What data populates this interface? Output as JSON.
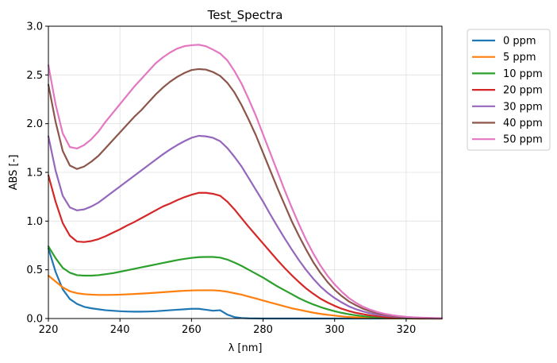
{
  "chart_data": {
    "type": "line",
    "title": "Test_Spectra",
    "xlabel": "λ [nm]",
    "ylabel": "ABS [-]",
    "xlim": [
      220,
      330
    ],
    "ylim": [
      0,
      3.0
    ],
    "xticks": [
      220,
      240,
      260,
      280,
      300,
      320
    ],
    "yticks": [
      0.0,
      0.5,
      1.0,
      1.5,
      2.0,
      2.5,
      3.0
    ],
    "xtick_labels": [
      "220",
      "240",
      "260",
      "280",
      "300",
      "320"
    ],
    "ytick_labels": [
      "0.0",
      "0.5",
      "1.0",
      "1.5",
      "2.0",
      "2.5",
      "3.0"
    ],
    "grid": true,
    "legend_position": "outside-top-right",
    "x": [
      220,
      222,
      224,
      226,
      228,
      230,
      232,
      234,
      236,
      238,
      240,
      242,
      244,
      246,
      248,
      250,
      252,
      254,
      256,
      258,
      260,
      262,
      264,
      266,
      268,
      270,
      272,
      274,
      276,
      278,
      280,
      282,
      284,
      286,
      288,
      290,
      292,
      294,
      296,
      298,
      300,
      302,
      304,
      306,
      308,
      310,
      312,
      314,
      316,
      318,
      320,
      322,
      324,
      326,
      328,
      330
    ],
    "series": [
      {
        "name": "0 ppm",
        "color": "#1f77b4",
        "values": [
          0.72,
          0.48,
          0.3,
          0.2,
          0.15,
          0.12,
          0.105,
          0.095,
          0.085,
          0.08,
          0.075,
          0.072,
          0.07,
          0.07,
          0.072,
          0.075,
          0.08,
          0.085,
          0.09,
          0.095,
          0.1,
          0.1,
          0.09,
          0.08,
          0.085,
          0.04,
          0.015,
          0.005,
          0.002,
          0.001,
          0,
          0,
          0,
          0,
          0,
          0,
          0,
          0,
          0,
          0,
          0,
          0,
          0,
          0,
          0,
          0,
          0,
          0,
          0,
          0,
          0,
          0,
          0,
          0,
          0,
          0
        ]
      },
      {
        "name": "5 ppm",
        "color": "#ff7f0e",
        "values": [
          0.44,
          0.38,
          0.32,
          0.28,
          0.26,
          0.25,
          0.245,
          0.242,
          0.242,
          0.243,
          0.245,
          0.248,
          0.252,
          0.256,
          0.26,
          0.265,
          0.27,
          0.275,
          0.28,
          0.285,
          0.288,
          0.29,
          0.29,
          0.29,
          0.285,
          0.275,
          0.26,
          0.245,
          0.225,
          0.205,
          0.185,
          0.165,
          0.145,
          0.125,
          0.105,
          0.09,
          0.075,
          0.06,
          0.048,
          0.038,
          0.03,
          0.022,
          0.016,
          0.012,
          0.009,
          0.006,
          0.004,
          0.003,
          0.002,
          0.001,
          0.001,
          0,
          0,
          0,
          0,
          0
        ]
      },
      {
        "name": "10 ppm",
        "color": "#2ca02c",
        "values": [
          0.74,
          0.62,
          0.52,
          0.47,
          0.445,
          0.44,
          0.44,
          0.445,
          0.455,
          0.465,
          0.48,
          0.495,
          0.51,
          0.525,
          0.54,
          0.555,
          0.57,
          0.585,
          0.6,
          0.612,
          0.622,
          0.63,
          0.632,
          0.632,
          0.625,
          0.605,
          0.575,
          0.54,
          0.5,
          0.46,
          0.42,
          0.375,
          0.33,
          0.29,
          0.25,
          0.21,
          0.175,
          0.145,
          0.118,
          0.095,
          0.075,
          0.058,
          0.044,
          0.033,
          0.024,
          0.017,
          0.012,
          0.008,
          0.005,
          0.003,
          0.002,
          0.001,
          0,
          0,
          0,
          0
        ]
      },
      {
        "name": "20 ppm",
        "color": "#d62728",
        "values": [
          1.47,
          1.2,
          0.98,
          0.85,
          0.79,
          0.785,
          0.795,
          0.815,
          0.845,
          0.88,
          0.915,
          0.955,
          0.99,
          1.03,
          1.07,
          1.11,
          1.15,
          1.18,
          1.215,
          1.245,
          1.27,
          1.29,
          1.29,
          1.28,
          1.26,
          1.2,
          1.12,
          1.03,
          0.94,
          0.855,
          0.77,
          0.685,
          0.6,
          0.52,
          0.445,
          0.375,
          0.31,
          0.255,
          0.205,
          0.165,
          0.13,
          0.1,
          0.077,
          0.058,
          0.044,
          0.032,
          0.023,
          0.016,
          0.011,
          0.008,
          0.005,
          0.003,
          0.002,
          0.001,
          0,
          0
        ]
      },
      {
        "name": "30 ppm",
        "color": "#9467bd",
        "values": [
          1.87,
          1.52,
          1.26,
          1.14,
          1.11,
          1.12,
          1.15,
          1.19,
          1.245,
          1.3,
          1.355,
          1.41,
          1.465,
          1.52,
          1.575,
          1.63,
          1.685,
          1.735,
          1.78,
          1.82,
          1.855,
          1.875,
          1.87,
          1.855,
          1.82,
          1.75,
          1.66,
          1.56,
          1.44,
          1.32,
          1.2,
          1.07,
          0.945,
          0.825,
          0.71,
          0.6,
          0.5,
          0.41,
          0.33,
          0.265,
          0.21,
          0.165,
          0.125,
          0.095,
          0.072,
          0.054,
          0.04,
          0.029,
          0.021,
          0.015,
          0.011,
          0.008,
          0.005,
          0.003,
          0.002,
          0.001
        ]
      },
      {
        "name": "40 ppm",
        "color": "#8c564b",
        "values": [
          2.4,
          2.02,
          1.72,
          1.57,
          1.535,
          1.56,
          1.61,
          1.67,
          1.75,
          1.83,
          1.91,
          1.99,
          2.07,
          2.14,
          2.22,
          2.3,
          2.37,
          2.43,
          2.48,
          2.52,
          2.55,
          2.56,
          2.555,
          2.53,
          2.49,
          2.42,
          2.32,
          2.19,
          2.04,
          1.88,
          1.7,
          1.52,
          1.34,
          1.17,
          1.0,
          0.85,
          0.71,
          0.58,
          0.47,
          0.375,
          0.295,
          0.23,
          0.175,
          0.135,
          0.1,
          0.075,
          0.055,
          0.04,
          0.028,
          0.02,
          0.014,
          0.01,
          0.007,
          0.005,
          0.003,
          0.002
        ]
      },
      {
        "name": "50 ppm",
        "color": "#e377c2",
        "values": [
          2.6,
          2.2,
          1.9,
          1.76,
          1.745,
          1.78,
          1.84,
          1.92,
          2.02,
          2.11,
          2.2,
          2.29,
          2.38,
          2.46,
          2.54,
          2.62,
          2.68,
          2.73,
          2.77,
          2.795,
          2.805,
          2.81,
          2.795,
          2.76,
          2.72,
          2.65,
          2.54,
          2.41,
          2.25,
          2.08,
          1.89,
          1.7,
          1.51,
          1.32,
          1.14,
          0.97,
          0.81,
          0.67,
          0.545,
          0.44,
          0.35,
          0.275,
          0.21,
          0.16,
          0.12,
          0.09,
          0.066,
          0.048,
          0.035,
          0.025,
          0.018,
          0.013,
          0.009,
          0.006,
          0.004,
          0.003
        ]
      }
    ]
  }
}
